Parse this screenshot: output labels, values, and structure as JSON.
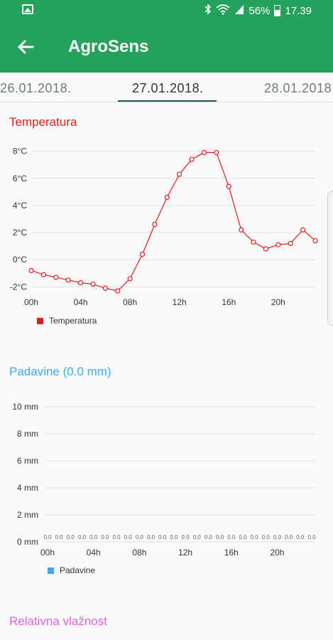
{
  "status_bar": {
    "battery": "56%",
    "time": "17.39",
    "icons": [
      "image-icon",
      "bluetooth-icon",
      "wifi-icon",
      "signal-icon",
      "battery-icon"
    ]
  },
  "app_bar": {
    "title": "AgroSens",
    "back_icon": "arrow-back-icon",
    "color": "#24a15a"
  },
  "tabs": [
    {
      "label": "26.01.2018.",
      "active": false
    },
    {
      "label": "27.01.2018.",
      "active": true
    },
    {
      "label": "28.01.2018.",
      "active": false
    }
  ],
  "temperature": {
    "title": "Temperatura",
    "title_color": "#e21b1b",
    "legend": "Temperatura",
    "chart_data": {
      "type": "line",
      "x": [
        0,
        1,
        2,
        3,
        4,
        5,
        6,
        7,
        8,
        9,
        10,
        11,
        12,
        13,
        14,
        15,
        16,
        17,
        18,
        19,
        20,
        21,
        22,
        23
      ],
      "x_tick_labels": [
        "00h",
        "04h",
        "08h",
        "12h",
        "16h",
        "20h"
      ],
      "x_tick_values": [
        0,
        4,
        8,
        12,
        16,
        20
      ],
      "y_tick_labels": [
        "-2°C",
        "0°C",
        "2°C",
        "4°C",
        "6°C",
        "8°C"
      ],
      "y_tick_values": [
        -2,
        0,
        2,
        4,
        6,
        8
      ],
      "ylim": [
        -2.4,
        8.4
      ],
      "xlim": [
        0,
        23
      ],
      "series": [
        {
          "name": "Temperatura",
          "color": "#e21b1b",
          "values": [
            -0.8,
            -1.1,
            -1.3,
            -1.5,
            -1.7,
            -1.8,
            -2.1,
            -2.3,
            -1.4,
            0.4,
            2.6,
            4.6,
            6.3,
            7.4,
            7.9,
            7.9,
            5.4,
            2.2,
            1.3,
            0.8,
            1.1,
            1.2,
            2.2,
            1.4
          ]
        }
      ]
    }
  },
  "precipitation": {
    "title": "Padavine (0.0 mm)",
    "title_color": "#3aa8ea",
    "legend": "Padavine",
    "chart_data": {
      "type": "bar",
      "x": [
        0,
        1,
        2,
        3,
        4,
        5,
        6,
        7,
        8,
        9,
        10,
        11,
        12,
        13,
        14,
        15,
        16,
        17,
        18,
        19,
        20,
        21,
        22,
        23
      ],
      "x_tick_labels": [
        "00h",
        "04h",
        "08h",
        "12h",
        "16h",
        "20h"
      ],
      "x_tick_values": [
        0,
        4,
        8,
        12,
        16,
        20
      ],
      "y_tick_labels": [
        "0 mm",
        "2 mm",
        "4 mm",
        "6 mm",
        "8 mm",
        "10 mm"
      ],
      "y_tick_values": [
        0,
        2,
        4,
        6,
        8,
        10
      ],
      "ylim": [
        0,
        10
      ],
      "xlim": [
        0,
        23
      ],
      "data_label": "0.0",
      "series": [
        {
          "name": "Padavine",
          "color": "#3aa8ea",
          "values": [
            0,
            0,
            0,
            0,
            0,
            0,
            0,
            0,
            0,
            0,
            0,
            0,
            0,
            0,
            0,
            0,
            0,
            0,
            0,
            0,
            0,
            0,
            0,
            0
          ]
        }
      ]
    }
  },
  "humidity": {
    "title": "Relativna vlažnost",
    "title_color": "#e55fe0"
  }
}
